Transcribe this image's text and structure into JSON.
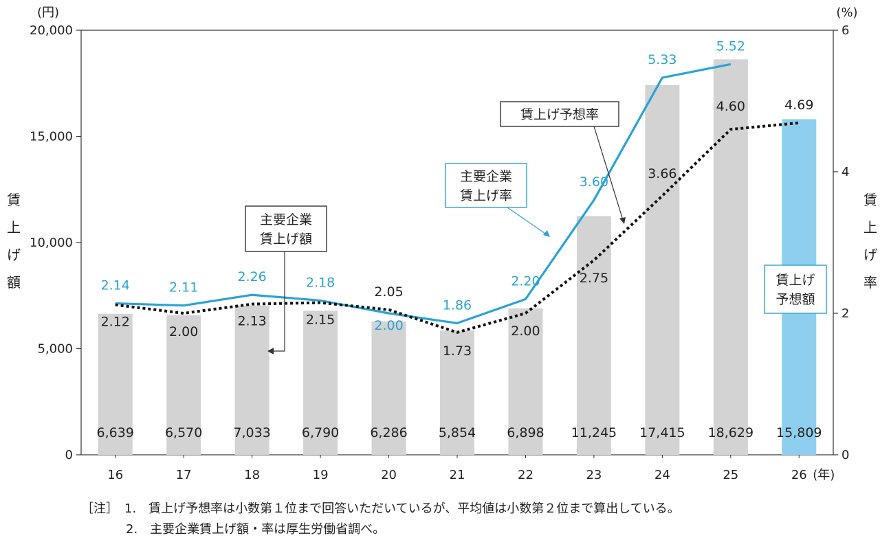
{
  "chart_data": {
    "type": "bar",
    "categories": [
      "16",
      "17",
      "18",
      "19",
      "20",
      "21",
      "22",
      "23",
      "24",
      "25",
      "26"
    ],
    "x_unit": "(年)",
    "left_axis": {
      "unit": "(円)",
      "title_chars": [
        "賃",
        "上",
        "げ",
        "額"
      ],
      "ylim": [
        0,
        20000
      ],
      "ticks": [
        "0",
        "5,000",
        "10,000",
        "15,000",
        "20,000"
      ]
    },
    "right_axis": {
      "unit": "(%)",
      "title_chars": [
        "賃",
        "上",
        "げ",
        "率"
      ],
      "ylim": [
        0,
        6
      ],
      "ticks": [
        "0",
        "2",
        "4",
        "6"
      ]
    },
    "bars": {
      "name": "主要企業賃上げ額",
      "values": [
        6639,
        6570,
        7033,
        6790,
        6286,
        5854,
        6898,
        11245,
        17415,
        18629,
        15809
      ],
      "labels": [
        "6,639",
        "6,570",
        "7,033",
        "6,790",
        "6,286",
        "5,854",
        "6,898",
        "11,245",
        "17,415",
        "18,629",
        "15,809"
      ],
      "color": "#d3d3d3",
      "highlight_color": "#8ecfef",
      "highlight_index": 10
    },
    "series": [
      {
        "name": "主要企業賃上げ率",
        "values": [
          2.14,
          2.11,
          2.26,
          2.18,
          2.0,
          1.86,
          2.2,
          3.6,
          5.33,
          5.52,
          null
        ],
        "labels": [
          "2.14",
          "2.11",
          "2.26",
          "2.18",
          "2.00",
          "1.86",
          "2.20",
          "3.60",
          "5.33",
          "5.52",
          ""
        ],
        "color": "#2aa3d6",
        "style": "solid"
      },
      {
        "name": "賃上げ予想率",
        "values": [
          2.12,
          2.0,
          2.13,
          2.15,
          2.05,
          1.73,
          2.0,
          2.75,
          3.66,
          4.6,
          4.69
        ],
        "labels": [
          "2.12",
          "2.00",
          "2.13",
          "2.15",
          "2.05",
          "1.73",
          "2.00",
          "2.75",
          "3.66",
          "4.60",
          "4.69"
        ],
        "color": "#111111",
        "style": "dotted"
      }
    ],
    "callouts": {
      "amount": [
        "主要企業",
        "賃上げ額"
      ],
      "actual_rate": [
        "主要企業",
        "賃上げ率"
      ],
      "forecast_rate": [
        "賃上げ予想率"
      ],
      "forecast_amount": [
        "賃上げ",
        "予想額"
      ]
    },
    "notes": [
      "［注］　1.　賃上げ予想率は小数第１位まで回答いただいているが、平均値は小数第２位まで算出している。",
      "2.　主要企業賃上げ額・率は厚生労働省調べ。"
    ]
  }
}
